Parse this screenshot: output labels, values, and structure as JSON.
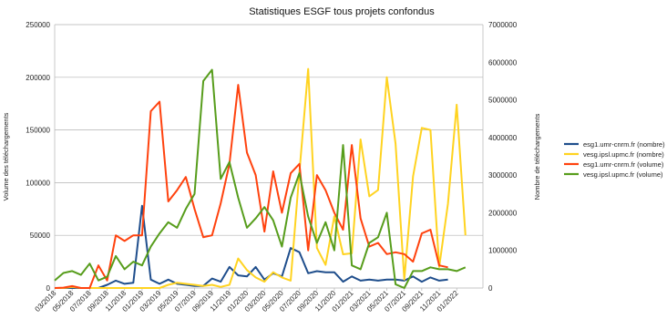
{
  "chart_data": {
    "type": "line",
    "title": "Statistiques ESGF tous projets confondus",
    "ylabel": "Volume des téléchargements",
    "y2label": "Nombre de téléchargements",
    "ylim": [
      0,
      250000
    ],
    "y2lim": [
      0,
      7000000
    ],
    "y_ticks": [
      "0",
      "50000",
      "100000",
      "150000",
      "200000",
      "250000"
    ],
    "y2_ticks": [
      "0",
      "1000000",
      "2000000",
      "3000000",
      "4000000",
      "5000000",
      "6000000",
      "7000000"
    ],
    "x_labels": [
      "03/2018",
      "05/2018",
      "07/2018",
      "09/2018",
      "11/2018",
      "01/2019",
      "03/2019",
      "05/2019",
      "07/2019",
      "09/2019",
      "11/2019",
      "01/2020",
      "03/2020",
      "05/2020",
      "07/2020",
      "09/2020",
      "11/2020",
      "01/2021",
      "03/2021",
      "05/2021",
      "07/2021",
      "09/2021",
      "11/2021",
      "01/2022"
    ],
    "legend_position": "right",
    "grid": true,
    "series": [
      {
        "name": "esg1.umr-cnrm.fr (nombre)",
        "axis": "left",
        "color": "#1f4e8c",
        "values": [
          0,
          0,
          0,
          0,
          0,
          0,
          3000,
          7000,
          4000,
          5000,
          78000,
          8000,
          4000,
          8000,
          4000,
          3000,
          2000,
          2000,
          9000,
          6000,
          20000,
          12000,
          11000,
          20000,
          8000,
          14000,
          11000,
          38000,
          34000,
          14000,
          16000,
          15000,
          15000,
          6000,
          11000,
          7000,
          8000,
          7000,
          8000,
          8000,
          7000,
          11000,
          6000,
          10000,
          7000,
          8000,
          null,
          null,
          null,
          null
        ]
      },
      {
        "name": "vesg.ipsl.upmc.fr (nombre)",
        "axis": "left",
        "color": "#ffd320",
        "values": [
          0,
          0,
          1000,
          0,
          0,
          0,
          0,
          0,
          0,
          0,
          0,
          0,
          0,
          3000,
          5000,
          4000,
          3000,
          2000,
          3000,
          1000,
          3000,
          28000,
          17000,
          10000,
          6000,
          15000,
          10000,
          7000,
          110000,
          208000,
          38000,
          22000,
          68000,
          32000,
          33000,
          141000,
          87000,
          93000,
          200000,
          137000,
          8000,
          106000,
          152000,
          150000,
          20000,
          80000,
          174000,
          50000,
          null,
          null
        ]
      },
      {
        "name": "esg1.umr-cnrm.fr (volume)",
        "axis": "right",
        "color": "#ff420e",
        "values": [
          0,
          10000,
          50000,
          0,
          0,
          600000,
          200000,
          1400000,
          1250000,
          1400000,
          1400000,
          4700000,
          4950000,
          2300000,
          2600000,
          2950000,
          2100000,
          1350000,
          1400000,
          2250000,
          3300000,
          5400000,
          3600000,
          3000000,
          1500000,
          3100000,
          2000000,
          3050000,
          3300000,
          1000000,
          3000000,
          2600000,
          2000000,
          1550000,
          3800000,
          1850000,
          1100000,
          1200000,
          900000,
          950000,
          900000,
          700000,
          1450000,
          1550000,
          600000,
          550000,
          null,
          null,
          null,
          null
        ]
      },
      {
        "name": "vesg.ipsl.upmc.fr (volume)",
        "axis": "right",
        "color": "#579d1c",
        "values": [
          200000,
          400000,
          450000,
          350000,
          650000,
          200000,
          300000,
          850000,
          500000,
          700000,
          600000,
          1100000,
          1450000,
          1750000,
          1600000,
          2100000,
          2500000,
          5500000,
          5800000,
          2900000,
          3350000,
          2400000,
          1600000,
          1850000,
          2150000,
          1800000,
          1100000,
          2400000,
          3050000,
          1900000,
          1200000,
          1750000,
          1000000,
          3800000,
          600000,
          500000,
          1200000,
          1350000,
          2000000,
          100000,
          0,
          450000,
          450000,
          550000,
          500000,
          500000,
          450000,
          550000,
          null,
          null
        ]
      }
    ]
  }
}
